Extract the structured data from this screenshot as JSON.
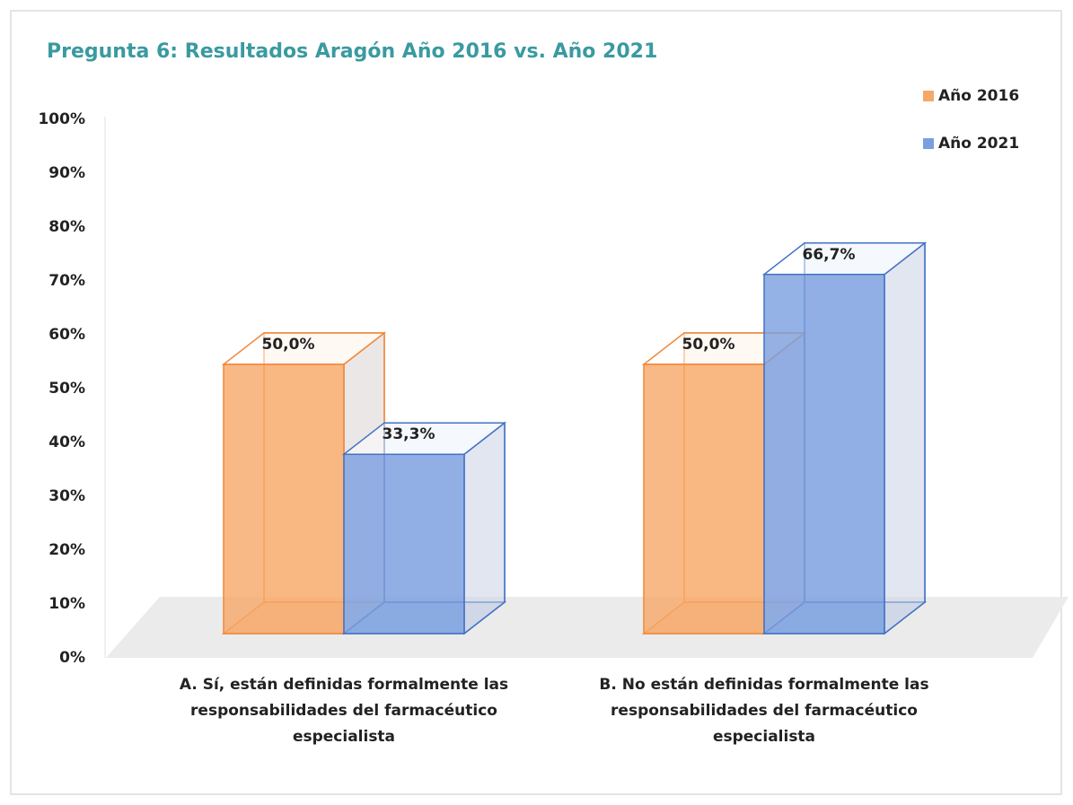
{
  "chart_data": {
    "type": "bar3d",
    "title": "Pregunta 6: Resultados Aragón Año 2016 vs. Año 2021",
    "categories": [
      "A. Sí, están definidas formalmente las responsabilidades del farmacéutico especialista",
      "B. No están definidas formalmente las responsabilidades del farmacéutico especialista"
    ],
    "series": [
      {
        "name": "Año 2016",
        "color": "#f7a868",
        "values": [
          50,
          50
        ],
        "value_labels": [
          "50,0%",
          "50,0%"
        ]
      },
      {
        "name": "Año 2021",
        "color": "#7a9fe0",
        "values": [
          33.3,
          66.7
        ],
        "value_labels": [
          "33,3%",
          "66,7%"
        ]
      }
    ],
    "ylim": [
      0,
      100
    ],
    "yticks": [
      {
        "value": 0,
        "label": "0%"
      },
      {
        "value": 10,
        "label": "10%"
      },
      {
        "value": 20,
        "label": "20%"
      },
      {
        "value": 30,
        "label": "30%"
      },
      {
        "value": 40,
        "label": "40%"
      },
      {
        "value": 50,
        "label": "50%"
      },
      {
        "value": 60,
        "label": "60%"
      },
      {
        "value": 70,
        "label": "70%"
      },
      {
        "value": 80,
        "label": "80%"
      },
      {
        "value": 90,
        "label": "90%"
      },
      {
        "value": 100,
        "label": "100%"
      }
    ],
    "legend": "top-right"
  }
}
